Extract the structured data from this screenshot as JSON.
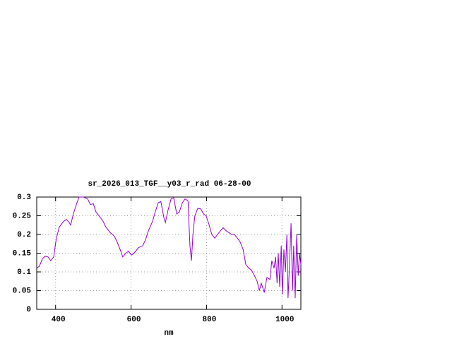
{
  "chart_data": {
    "type": "line",
    "title": "sr_2026_013_TGF__y03_r_rad 06-28-00",
    "x_label": "nm",
    "xlim": [
      350,
      1050
    ],
    "xticks": [
      400,
      600,
      800,
      1000
    ],
    "ylim": [
      0,
      0.3
    ],
    "yticks": [
      0,
      0.05,
      0.1,
      0.15,
      0.2,
      0.25,
      0.3
    ],
    "grid": true,
    "series": [
      {
        "color": "#9400d3",
        "x": [
          350,
          357,
          365,
          372,
          380,
          387,
          395,
          402,
          410,
          421,
          429,
          436,
          440,
          447,
          455,
          462,
          474,
          485,
          492,
          500,
          507,
          515,
          526,
          533,
          545,
          556,
          563,
          571,
          578,
          586,
          593,
          601,
          608,
          620,
          631,
          638,
          646,
          657,
          664,
          672,
          679,
          687,
          691,
          698,
          706,
          713,
          721,
          728,
          736,
          743,
          751,
          756,
          760,
          764,
          769,
          777,
          785,
          792,
          799,
          807,
          814,
          822,
          829,
          837,
          844,
          852,
          859,
          867,
          874,
          882,
          889,
          897,
          904,
          912,
          919,
          927,
          934,
          940,
          945,
          953,
          960,
          968,
          973,
          979,
          983,
          987,
          990,
          994,
          998,
          1001,
          1005,
          1009,
          1013,
          1016,
          1020,
          1024,
          1028,
          1031,
          1035,
          1039,
          1043,
          1046,
          1050
        ],
        "values": [
          0.11,
          0.115,
          0.135,
          0.142,
          0.14,
          0.13,
          0.14,
          0.19,
          0.22,
          0.235,
          0.24,
          0.232,
          0.225,
          0.255,
          0.28,
          0.3,
          0.3,
          0.295,
          0.28,
          0.282,
          0.26,
          0.25,
          0.235,
          0.22,
          0.205,
          0.195,
          0.18,
          0.16,
          0.14,
          0.15,
          0.155,
          0.145,
          0.15,
          0.165,
          0.17,
          0.185,
          0.21,
          0.235,
          0.26,
          0.285,
          0.288,
          0.245,
          0.232,
          0.265,
          0.295,
          0.298,
          0.255,
          0.26,
          0.285,
          0.295,
          0.29,
          0.17,
          0.13,
          0.2,
          0.25,
          0.27,
          0.268,
          0.255,
          0.25,
          0.225,
          0.2,
          0.19,
          0.2,
          0.21,
          0.218,
          0.21,
          0.205,
          0.2,
          0.2,
          0.19,
          0.18,
          0.16,
          0.12,
          0.11,
          0.105,
          0.09,
          0.075,
          0.05,
          0.07,
          0.045,
          0.085,
          0.08,
          0.13,
          0.11,
          0.14,
          0.07,
          0.15,
          0.06,
          0.17,
          0.04,
          0.16,
          0.1,
          0.2,
          0.03,
          0.12,
          0.23,
          0.05,
          0.17,
          0.03,
          0.2,
          0.09,
          0.15,
          0.12
        ]
      }
    ]
  }
}
